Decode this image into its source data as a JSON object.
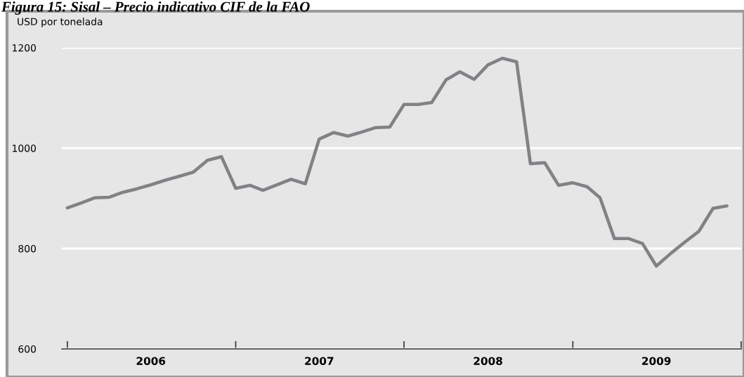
{
  "chart_data": {
    "type": "line",
    "title": "Figura 15: Sisal – Precio indicativo CIF de la FAO",
    "ylabel": "USD por tonelada",
    "x": [
      "2006-01",
      "2006-02",
      "2006-03",
      "2006-04",
      "2006-05",
      "2006-06",
      "2006-07",
      "2006-08",
      "2006-09",
      "2006-10",
      "2006-11",
      "2006-12",
      "2007-01",
      "2007-02",
      "2007-03",
      "2007-04",
      "2007-05",
      "2007-06",
      "2007-07",
      "2007-08",
      "2007-09",
      "2007-10",
      "2007-11",
      "2007-12",
      "2008-01",
      "2008-02",
      "2008-03",
      "2008-04",
      "2008-05",
      "2008-06",
      "2008-07",
      "2008-08",
      "2008-09",
      "2008-10",
      "2008-11",
      "2008-12",
      "2009-01",
      "2009-02",
      "2009-03",
      "2009-04",
      "2009-05",
      "2009-06",
      "2009-07",
      "2009-08",
      "2009-09",
      "2009-10",
      "2009-11",
      "2009-12"
    ],
    "series": [
      {
        "color": "#808285",
        "values": [
          881,
          891,
          901,
          902,
          912,
          919,
          927,
          936,
          944,
          952,
          976,
          983,
          920,
          926,
          916,
          927,
          938,
          929,
          1018,
          1031,
          1024,
          1032,
          1041,
          1042,
          1087,
          1087,
          1091,
          1136,
          1152,
          1137,
          1166,
          1179,
          1172,
          969,
          971,
          926,
          931,
          923,
          901,
          820,
          820,
          810,
          765,
          790,
          813,
          834,
          880,
          885
        ]
      }
    ],
    "xlim": [
      "2005-12-20",
      "2010-01"
    ],
    "xticks": [
      {
        "value": "2006-01",
        "label": null
      },
      {
        "value": "2006-07",
        "label": "2006"
      },
      {
        "value": "2007-01",
        "label": null
      },
      {
        "value": "2007-07",
        "label": "2007"
      },
      {
        "value": "2008-01",
        "label": null
      },
      {
        "value": "2008-07",
        "label": "2008"
      },
      {
        "value": "2009-01",
        "label": null
      },
      {
        "value": "2009-07",
        "label": "2009"
      },
      {
        "value": "2010-01",
        "label": null
      }
    ],
    "ylim": [
      600,
      1200
    ],
    "yticks": [
      600,
      800,
      1000,
      1200
    ],
    "grid": "y",
    "marker": "none",
    "line_style": "solid"
  }
}
